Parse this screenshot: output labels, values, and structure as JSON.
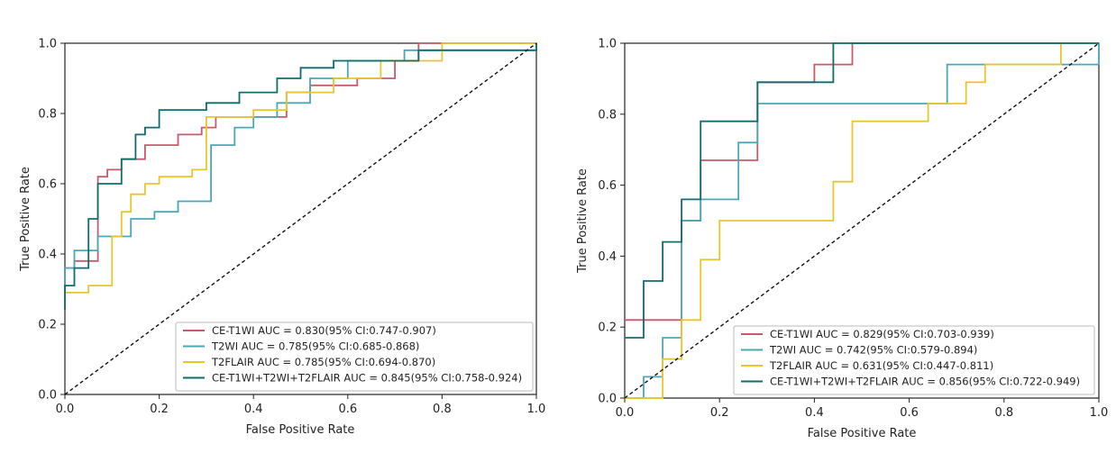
{
  "chart_data": [
    {
      "type": "line",
      "xlabel": "False Positive Rate",
      "ylabel": "True Positive Rate",
      "xlim": [
        0.0,
        1.0
      ],
      "ylim": [
        0.0,
        1.0
      ],
      "xticks": [
        "0.0",
        "0.2",
        "0.4",
        "0.6",
        "0.8",
        "1.0"
      ],
      "yticks": [
        "0.0",
        "0.2",
        "0.4",
        "0.6",
        "0.8",
        "1.0"
      ],
      "legend_position": "lower-right",
      "series": [
        {
          "name": "CE-T1WI  AUC = 0.830(95% CI:0.747-0.907)",
          "color": "#c85a6e",
          "points": [
            [
              0,
              0.26
            ],
            [
              0,
              0.36
            ],
            [
              0.02,
              0.36
            ],
            [
              0.02,
              0.38
            ],
            [
              0.07,
              0.38
            ],
            [
              0.07,
              0.62
            ],
            [
              0.09,
              0.62
            ],
            [
              0.09,
              0.64
            ],
            [
              0.12,
              0.64
            ],
            [
              0.12,
              0.67
            ],
            [
              0.17,
              0.67
            ],
            [
              0.17,
              0.71
            ],
            [
              0.24,
              0.71
            ],
            [
              0.24,
              0.74
            ],
            [
              0.29,
              0.74
            ],
            [
              0.29,
              0.76
            ],
            [
              0.32,
              0.76
            ],
            [
              0.32,
              0.79
            ],
            [
              0.47,
              0.79
            ],
            [
              0.47,
              0.86
            ],
            [
              0.52,
              0.86
            ],
            [
              0.52,
              0.88
            ],
            [
              0.62,
              0.88
            ],
            [
              0.62,
              0.9
            ],
            [
              0.7,
              0.9
            ],
            [
              0.7,
              0.95
            ],
            [
              0.75,
              0.95
            ],
            [
              0.75,
              1.0
            ],
            [
              1.0,
              1.0
            ]
          ]
        },
        {
          "name": "T2WI  AUC = 0.785(95% CI:0.685-0.868)",
          "color": "#4aa7b8",
          "points": [
            [
              0,
              0.28
            ],
            [
              0,
              0.36
            ],
            [
              0.02,
              0.36
            ],
            [
              0.02,
              0.41
            ],
            [
              0.07,
              0.41
            ],
            [
              0.07,
              0.45
            ],
            [
              0.14,
              0.45
            ],
            [
              0.14,
              0.5
            ],
            [
              0.19,
              0.5
            ],
            [
              0.19,
              0.52
            ],
            [
              0.24,
              0.52
            ],
            [
              0.24,
              0.55
            ],
            [
              0.31,
              0.55
            ],
            [
              0.31,
              0.71
            ],
            [
              0.36,
              0.71
            ],
            [
              0.36,
              0.76
            ],
            [
              0.4,
              0.76
            ],
            [
              0.4,
              0.79
            ],
            [
              0.45,
              0.79
            ],
            [
              0.45,
              0.83
            ],
            [
              0.52,
              0.83
            ],
            [
              0.52,
              0.9
            ],
            [
              0.6,
              0.9
            ],
            [
              0.6,
              0.95
            ],
            [
              0.72,
              0.95
            ],
            [
              0.72,
              0.98
            ],
            [
              1.0,
              0.98
            ],
            [
              1.0,
              1.0
            ]
          ]
        },
        {
          "name": "T2FLAIR  AUC = 0.785(95% CI:0.694-0.870)",
          "color": "#e9c62c",
          "points": [
            [
              0,
              0.26
            ],
            [
              0,
              0.29
            ],
            [
              0.05,
              0.29
            ],
            [
              0.05,
              0.31
            ],
            [
              0.1,
              0.31
            ],
            [
              0.1,
              0.45
            ],
            [
              0.12,
              0.45
            ],
            [
              0.12,
              0.52
            ],
            [
              0.14,
              0.52
            ],
            [
              0.14,
              0.57
            ],
            [
              0.17,
              0.57
            ],
            [
              0.17,
              0.6
            ],
            [
              0.2,
              0.6
            ],
            [
              0.2,
              0.62
            ],
            [
              0.27,
              0.62
            ],
            [
              0.27,
              0.64
            ],
            [
              0.3,
              0.64
            ],
            [
              0.3,
              0.79
            ],
            [
              0.4,
              0.79
            ],
            [
              0.4,
              0.81
            ],
            [
              0.47,
              0.81
            ],
            [
              0.47,
              0.86
            ],
            [
              0.57,
              0.86
            ],
            [
              0.57,
              0.9
            ],
            [
              0.67,
              0.9
            ],
            [
              0.67,
              0.95
            ],
            [
              0.8,
              0.95
            ],
            [
              0.8,
              1.0
            ],
            [
              1.0,
              1.0
            ]
          ]
        },
        {
          "name": "CE-T1WI+T2WI+T2FLAIR  AUC = 0.845(95% CI:0.758-0.924)",
          "color": "#0e6e6e",
          "points": [
            [
              0,
              0.24
            ],
            [
              0,
              0.31
            ],
            [
              0.02,
              0.31
            ],
            [
              0.02,
              0.36
            ],
            [
              0.05,
              0.36
            ],
            [
              0.05,
              0.5
            ],
            [
              0.07,
              0.5
            ],
            [
              0.07,
              0.6
            ],
            [
              0.12,
              0.6
            ],
            [
              0.12,
              0.67
            ],
            [
              0.15,
              0.67
            ],
            [
              0.15,
              0.74
            ],
            [
              0.17,
              0.74
            ],
            [
              0.17,
              0.76
            ],
            [
              0.2,
              0.76
            ],
            [
              0.2,
              0.81
            ],
            [
              0.3,
              0.81
            ],
            [
              0.3,
              0.83
            ],
            [
              0.37,
              0.83
            ],
            [
              0.37,
              0.86
            ],
            [
              0.45,
              0.86
            ],
            [
              0.45,
              0.9
            ],
            [
              0.5,
              0.9
            ],
            [
              0.5,
              0.93
            ],
            [
              0.57,
              0.93
            ],
            [
              0.57,
              0.95
            ],
            [
              0.75,
              0.95
            ],
            [
              0.75,
              0.98
            ],
            [
              1.0,
              0.98
            ],
            [
              1.0,
              1.0
            ]
          ]
        }
      ]
    },
    {
      "type": "line",
      "xlabel": "False Positive Rate",
      "ylabel": "True Positive Rate",
      "xlim": [
        0.0,
        1.0
      ],
      "ylim": [
        0.0,
        1.0
      ],
      "xticks": [
        "0.0",
        "0.2",
        "0.4",
        "0.6",
        "0.8",
        "1.0"
      ],
      "yticks": [
        "0.0",
        "0.2",
        "0.4",
        "0.6",
        "0.8",
        "1.0"
      ],
      "legend_position": "lower-right",
      "series": [
        {
          "name": "CE-T1WI  AUC = 0.829(95% CI:0.703-0.939)",
          "color": "#c85a6e",
          "points": [
            [
              0,
              0.22
            ],
            [
              0.12,
              0.22
            ],
            [
              0.12,
              0.5
            ],
            [
              0.16,
              0.5
            ],
            [
              0.16,
              0.67
            ],
            [
              0.28,
              0.67
            ],
            [
              0.28,
              0.83
            ],
            [
              0.28,
              0.89
            ],
            [
              0.4,
              0.89
            ],
            [
              0.4,
              0.94
            ],
            [
              0.48,
              0.94
            ],
            [
              0.48,
              1.0
            ],
            [
              1.0,
              1.0
            ]
          ]
        },
        {
          "name": "T2WI  AUC = 0.742(95% CI:0.579-0.894)",
          "color": "#4aa7b8",
          "points": [
            [
              0,
              0.0
            ],
            [
              0.04,
              0.0
            ],
            [
              0.04,
              0.06
            ],
            [
              0.08,
              0.06
            ],
            [
              0.08,
              0.17
            ],
            [
              0.12,
              0.17
            ],
            [
              0.12,
              0.5
            ],
            [
              0.16,
              0.5
            ],
            [
              0.16,
              0.56
            ],
            [
              0.24,
              0.56
            ],
            [
              0.24,
              0.72
            ],
            [
              0.28,
              0.72
            ],
            [
              0.28,
              0.83
            ],
            [
              0.68,
              0.83
            ],
            [
              0.68,
              0.94
            ],
            [
              0.76,
              0.94
            ],
            [
              0.76,
              0.94
            ],
            [
              1.0,
              0.94
            ],
            [
              1.0,
              1.0
            ]
          ]
        },
        {
          "name": "T2FLAIR  AUC = 0.631(95% CI:0.447-0.811)",
          "color": "#e9c62c",
          "points": [
            [
              0,
              0.0
            ],
            [
              0.08,
              0.0
            ],
            [
              0.08,
              0.11
            ],
            [
              0.12,
              0.11
            ],
            [
              0.12,
              0.22
            ],
            [
              0.16,
              0.22
            ],
            [
              0.16,
              0.39
            ],
            [
              0.2,
              0.39
            ],
            [
              0.2,
              0.5
            ],
            [
              0.44,
              0.5
            ],
            [
              0.44,
              0.61
            ],
            [
              0.48,
              0.61
            ],
            [
              0.48,
              0.78
            ],
            [
              0.64,
              0.78
            ],
            [
              0.64,
              0.83
            ],
            [
              0.72,
              0.83
            ],
            [
              0.72,
              0.89
            ],
            [
              0.76,
              0.89
            ],
            [
              0.76,
              0.94
            ],
            [
              0.92,
              0.94
            ],
            [
              0.92,
              1.0
            ],
            [
              1.0,
              1.0
            ]
          ]
        },
        {
          "name": "CE-T1WI+T2WI+T2FLAIR  AUC = 0.856(95% CI:0.722-0.949)",
          "color": "#0e6e6e",
          "points": [
            [
              0,
              0.17
            ],
            [
              0,
              0.17
            ],
            [
              0.04,
              0.17
            ],
            [
              0.04,
              0.33
            ],
            [
              0.08,
              0.33
            ],
            [
              0.08,
              0.44
            ],
            [
              0.12,
              0.44
            ],
            [
              0.12,
              0.56
            ],
            [
              0.16,
              0.56
            ],
            [
              0.16,
              0.78
            ],
            [
              0.28,
              0.78
            ],
            [
              0.28,
              0.89
            ],
            [
              0.44,
              0.89
            ],
            [
              0.44,
              1.0
            ],
            [
              1.0,
              1.0
            ]
          ]
        }
      ]
    }
  ]
}
